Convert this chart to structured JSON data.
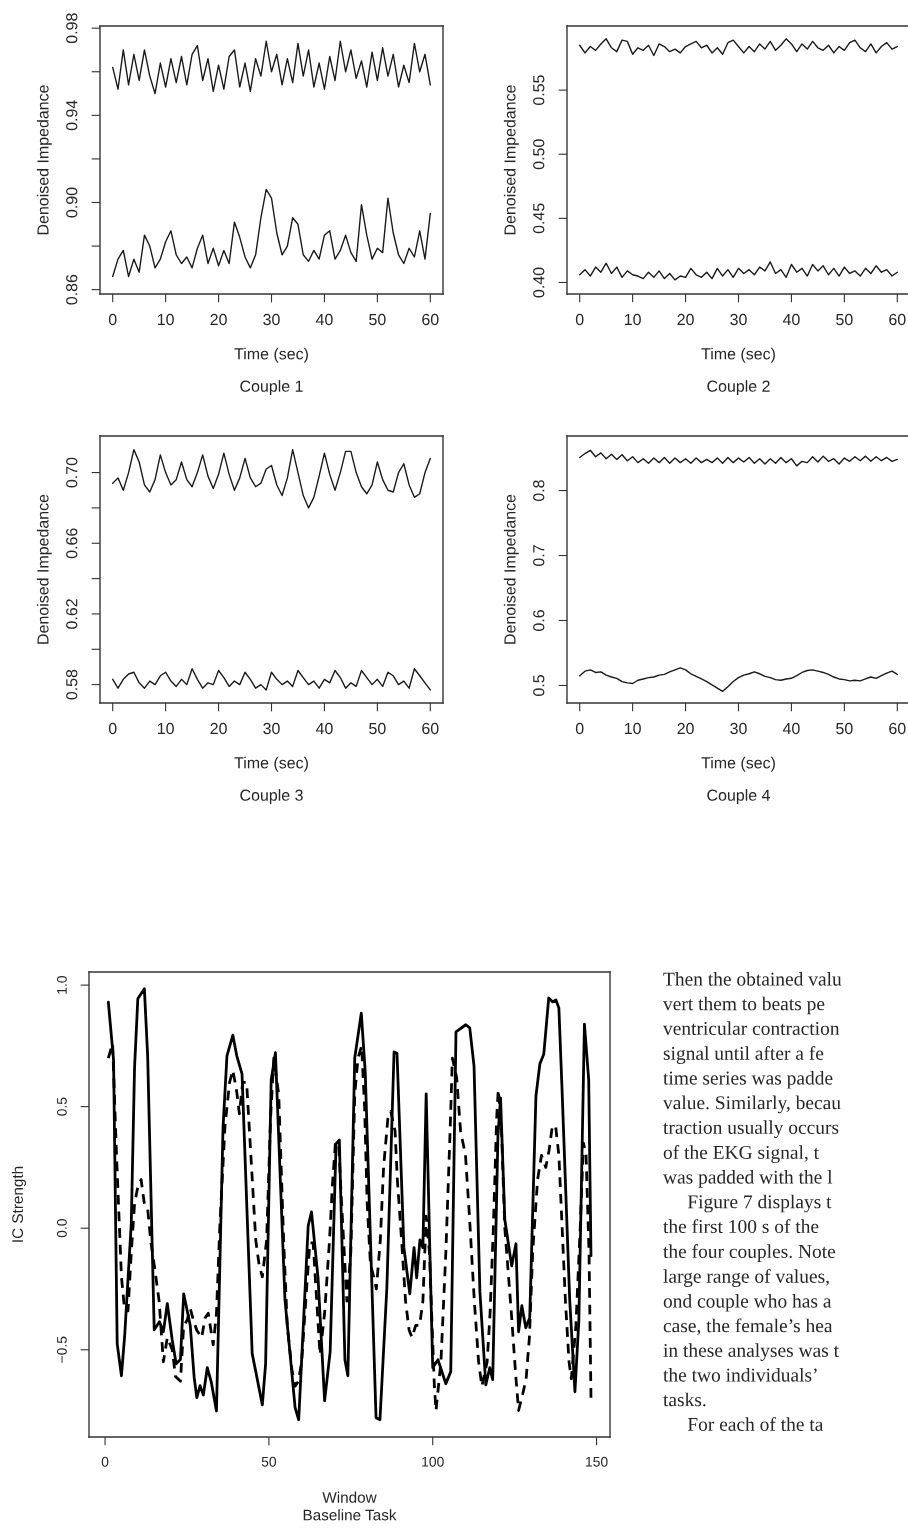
{
  "chart_data": [
    {
      "type": "line",
      "title": "Couple 1",
      "xlabel": "Time (sec)",
      "ylabel": "Denoised Impedance",
      "xlim": [
        -2.4,
        62.4
      ],
      "xticks": [
        0,
        10,
        20,
        30,
        40,
        50,
        60
      ],
      "ylim": [
        0.858,
        0.981
      ],
      "yticks": [
        {
          "value": 0.86,
          "label": "0.86"
        },
        {
          "value": 0.88,
          "label": null
        },
        {
          "value": 0.9,
          "label": "0.90"
        },
        {
          "value": 0.92,
          "label": null
        },
        {
          "value": 0.94,
          "label": "0.94"
        },
        {
          "value": 0.96,
          "label": null
        },
        {
          "value": 0.98,
          "label": "0.98"
        }
      ],
      "x": [
        0,
        1,
        2,
        3,
        4,
        5,
        6,
        7,
        8,
        9,
        10,
        11,
        12,
        13,
        14,
        15,
        16,
        17,
        18,
        19,
        20,
        21,
        22,
        23,
        24,
        25,
        26,
        27,
        28,
        29,
        30,
        31,
        32,
        33,
        34,
        35,
        36,
        37,
        38,
        39,
        40,
        41,
        42,
        43,
        44,
        45,
        46,
        47,
        48,
        49,
        50,
        51,
        52,
        53,
        54,
        55,
        56,
        57,
        58,
        59,
        60
      ],
      "series": [
        {
          "color": "#1a1a1a",
          "line_style": "solid",
          "values": [
            0.962,
            0.952,
            0.97,
            0.954,
            0.968,
            0.956,
            0.97,
            0.958,
            0.95,
            0.964,
            0.953,
            0.966,
            0.955,
            0.967,
            0.954,
            0.968,
            0.972,
            0.956,
            0.966,
            0.951,
            0.963,
            0.952,
            0.967,
            0.97,
            0.953,
            0.964,
            0.951,
            0.966,
            0.958,
            0.974,
            0.96,
            0.968,
            0.954,
            0.966,
            0.955,
            0.973,
            0.958,
            0.97,
            0.953,
            0.964,
            0.952,
            0.967,
            0.956,
            0.974,
            0.96,
            0.97,
            0.957,
            0.965,
            0.953,
            0.969,
            0.956,
            0.971,
            0.958,
            0.968,
            0.953,
            0.963,
            0.955,
            0.973,
            0.96,
            0.968,
            0.954
          ]
        },
        {
          "color": "#1a1a1a",
          "line_style": "solid",
          "values": [
            0.866,
            0.874,
            0.878,
            0.866,
            0.874,
            0.868,
            0.885,
            0.88,
            0.87,
            0.874,
            0.882,
            0.887,
            0.876,
            0.872,
            0.875,
            0.87,
            0.879,
            0.885,
            0.872,
            0.879,
            0.871,
            0.878,
            0.872,
            0.891,
            0.884,
            0.875,
            0.87,
            0.876,
            0.893,
            0.906,
            0.902,
            0.886,
            0.876,
            0.88,
            0.893,
            0.89,
            0.876,
            0.873,
            0.878,
            0.874,
            0.885,
            0.887,
            0.874,
            0.878,
            0.885,
            0.877,
            0.873,
            0.899,
            0.885,
            0.874,
            0.879,
            0.877,
            0.902,
            0.886,
            0.876,
            0.872,
            0.879,
            0.875,
            0.887,
            0.874,
            0.895
          ]
        }
      ]
    },
    {
      "type": "line",
      "title": "Couple 2",
      "xlabel": "Time (sec)",
      "ylabel": "Denoised Impedance",
      "xlim": [
        -2.4,
        62.4
      ],
      "xticks": [
        0,
        10,
        20,
        30,
        40,
        50,
        60
      ],
      "ylim": [
        0.391,
        0.6
      ],
      "yticks": [
        {
          "value": 0.4,
          "label": "0.40"
        },
        {
          "value": 0.45,
          "label": "0.45"
        },
        {
          "value": 0.5,
          "label": "0.50"
        },
        {
          "value": 0.55,
          "label": "0.55"
        }
      ],
      "x": [
        0,
        1,
        2,
        3,
        4,
        5,
        6,
        7,
        8,
        9,
        10,
        11,
        12,
        13,
        14,
        15,
        16,
        17,
        18,
        19,
        20,
        21,
        22,
        23,
        24,
        25,
        26,
        27,
        28,
        29,
        30,
        31,
        32,
        33,
        34,
        35,
        36,
        37,
        38,
        39,
        40,
        41,
        42,
        43,
        44,
        45,
        46,
        47,
        48,
        49,
        50,
        51,
        52,
        53,
        54,
        55,
        56,
        57,
        58,
        59,
        60
      ],
      "series": [
        {
          "color": "#1a1a1a",
          "line_style": "solid",
          "values": [
            0.585,
            0.579,
            0.584,
            0.581,
            0.586,
            0.59,
            0.583,
            0.58,
            0.589,
            0.588,
            0.578,
            0.583,
            0.581,
            0.585,
            0.577,
            0.586,
            0.584,
            0.58,
            0.582,
            0.579,
            0.584,
            0.586,
            0.588,
            0.583,
            0.585,
            0.579,
            0.583,
            0.578,
            0.587,
            0.589,
            0.584,
            0.579,
            0.584,
            0.58,
            0.586,
            0.582,
            0.588,
            0.581,
            0.585,
            0.59,
            0.586,
            0.58,
            0.586,
            0.582,
            0.588,
            0.583,
            0.581,
            0.585,
            0.579,
            0.584,
            0.581,
            0.587,
            0.589,
            0.583,
            0.58,
            0.586,
            0.579,
            0.584,
            0.587,
            0.582,
            0.584
          ]
        },
        {
          "color": "#1a1a1a",
          "line_style": "solid",
          "values": [
            0.406,
            0.41,
            0.405,
            0.412,
            0.408,
            0.415,
            0.407,
            0.412,
            0.404,
            0.409,
            0.406,
            0.405,
            0.403,
            0.408,
            0.404,
            0.409,
            0.403,
            0.407,
            0.402,
            0.405,
            0.404,
            0.411,
            0.406,
            0.404,
            0.408,
            0.403,
            0.411,
            0.405,
            0.41,
            0.404,
            0.411,
            0.407,
            0.41,
            0.406,
            0.412,
            0.409,
            0.416,
            0.407,
            0.41,
            0.404,
            0.414,
            0.408,
            0.411,
            0.405,
            0.414,
            0.409,
            0.413,
            0.406,
            0.411,
            0.405,
            0.412,
            0.407,
            0.409,
            0.405,
            0.411,
            0.407,
            0.413,
            0.408,
            0.41,
            0.405,
            0.408
          ]
        }
      ]
    },
    {
      "type": "line",
      "title": "Couple 3",
      "xlabel": "Time (sec)",
      "ylabel": "Denoised Impedance",
      "xlim": [
        -2.4,
        62.4
      ],
      "xticks": [
        0,
        10,
        20,
        30,
        40,
        50,
        60
      ],
      "ylim": [
        0.5696,
        0.7207
      ],
      "yticks": [
        {
          "value": 0.58,
          "label": "0.58"
        },
        {
          "value": 0.6,
          "label": null
        },
        {
          "value": 0.62,
          "label": "0.62"
        },
        {
          "value": 0.64,
          "label": null
        },
        {
          "value": 0.66,
          "label": "0.66"
        },
        {
          "value": 0.68,
          "label": null
        },
        {
          "value": 0.7,
          "label": "0.70"
        }
      ],
      "x": [
        0,
        1,
        2,
        3,
        4,
        5,
        6,
        7,
        8,
        9,
        10,
        11,
        12,
        13,
        14,
        15,
        16,
        17,
        18,
        19,
        20,
        21,
        22,
        23,
        24,
        25,
        26,
        27,
        28,
        29,
        30,
        31,
        32,
        33,
        34,
        35,
        36,
        37,
        38,
        39,
        40,
        41,
        42,
        43,
        44,
        45,
        46,
        47,
        48,
        49,
        50,
        51,
        52,
        53,
        54,
        55,
        56,
        57,
        58,
        59,
        60
      ],
      "series": [
        {
          "color": "#1a1a1a",
          "line_style": "solid",
          "values": [
            0.694,
            0.697,
            0.69,
            0.7,
            0.713,
            0.706,
            0.693,
            0.689,
            0.696,
            0.71,
            0.7,
            0.693,
            0.696,
            0.706,
            0.696,
            0.692,
            0.7,
            0.71,
            0.698,
            0.691,
            0.699,
            0.711,
            0.699,
            0.69,
            0.697,
            0.708,
            0.697,
            0.692,
            0.694,
            0.702,
            0.704,
            0.693,
            0.687,
            0.697,
            0.713,
            0.7,
            0.687,
            0.68,
            0.686,
            0.698,
            0.711,
            0.699,
            0.69,
            0.7,
            0.712,
            0.712,
            0.7,
            0.692,
            0.688,
            0.693,
            0.706,
            0.696,
            0.69,
            0.689,
            0.7,
            0.705,
            0.693,
            0.686,
            0.688,
            0.7,
            0.708
          ]
        },
        {
          "color": "#1a1a1a",
          "line_style": "solid",
          "values": [
            0.583,
            0.578,
            0.583,
            0.586,
            0.587,
            0.581,
            0.578,
            0.582,
            0.58,
            0.585,
            0.587,
            0.582,
            0.579,
            0.583,
            0.58,
            0.589,
            0.583,
            0.578,
            0.581,
            0.58,
            0.588,
            0.584,
            0.579,
            0.582,
            0.58,
            0.587,
            0.583,
            0.578,
            0.58,
            0.577,
            0.587,
            0.583,
            0.58,
            0.582,
            0.579,
            0.588,
            0.584,
            0.58,
            0.582,
            0.578,
            0.583,
            0.581,
            0.588,
            0.584,
            0.578,
            0.581,
            0.579,
            0.588,
            0.584,
            0.58,
            0.583,
            0.579,
            0.587,
            0.585,
            0.58,
            0.582,
            0.578,
            0.589,
            0.585,
            0.581,
            0.577
          ]
        }
      ]
    },
    {
      "type": "line",
      "title": "Couple 4",
      "xlabel": "Time (sec)",
      "ylabel": "Denoised Impedance",
      "xlim": [
        -2.4,
        62.4
      ],
      "xticks": [
        0,
        10,
        20,
        30,
        40,
        50,
        60
      ],
      "ylim": [
        0.473,
        0.884
      ],
      "yticks": [
        0.5,
        0.6,
        0.7,
        0.8
      ],
      "x": [
        0,
        1,
        2,
        3,
        4,
        5,
        6,
        7,
        8,
        9,
        10,
        11,
        12,
        13,
        14,
        15,
        16,
        17,
        18,
        19,
        20,
        21,
        22,
        23,
        24,
        25,
        26,
        27,
        28,
        29,
        30,
        31,
        32,
        33,
        34,
        35,
        36,
        37,
        38,
        39,
        40,
        41,
        42,
        43,
        44,
        45,
        46,
        47,
        48,
        49,
        50,
        51,
        52,
        53,
        54,
        55,
        56,
        57,
        58,
        59,
        60
      ],
      "series": [
        {
          "color": "#1a1a1a",
          "line_style": "solid",
          "values": [
            0.851,
            0.857,
            0.862,
            0.852,
            0.858,
            0.849,
            0.856,
            0.848,
            0.855,
            0.846,
            0.852,
            0.843,
            0.849,
            0.842,
            0.85,
            0.843,
            0.851,
            0.842,
            0.85,
            0.843,
            0.849,
            0.842,
            0.85,
            0.843,
            0.848,
            0.843,
            0.85,
            0.842,
            0.851,
            0.843,
            0.85,
            0.844,
            0.851,
            0.842,
            0.849,
            0.841,
            0.849,
            0.842,
            0.851,
            0.843,
            0.849,
            0.838,
            0.845,
            0.843,
            0.852,
            0.844,
            0.853,
            0.845,
            0.849,
            0.841,
            0.85,
            0.845,
            0.852,
            0.846,
            0.853,
            0.845,
            0.852,
            0.846,
            0.851,
            0.845,
            0.848
          ]
        },
        {
          "color": "#1a1a1a",
          "line_style": "solid",
          "values": [
            0.515,
            0.522,
            0.524,
            0.52,
            0.521,
            0.516,
            0.513,
            0.511,
            0.506,
            0.504,
            0.503,
            0.508,
            0.51,
            0.512,
            0.513,
            0.516,
            0.517,
            0.521,
            0.524,
            0.527,
            0.524,
            0.518,
            0.514,
            0.51,
            0.506,
            0.501,
            0.496,
            0.491,
            0.498,
            0.506,
            0.512,
            0.516,
            0.518,
            0.521,
            0.518,
            0.514,
            0.512,
            0.509,
            0.508,
            0.51,
            0.511,
            0.515,
            0.52,
            0.523,
            0.524,
            0.522,
            0.52,
            0.517,
            0.513,
            0.51,
            0.509,
            0.507,
            0.508,
            0.507,
            0.51,
            0.513,
            0.511,
            0.515,
            0.519,
            0.522,
            0.517
          ]
        }
      ]
    },
    {
      "type": "line",
      "title": "Baseline Task",
      "xlabel": "Window",
      "ylabel": "IC Strength",
      "xlim": [
        -4.9,
        154.1
      ],
      "xticks": [
        0,
        50,
        100,
        150
      ],
      "ylim": [
        -0.859,
        1.054
      ],
      "yticks": [
        {
          "value": -0.5,
          "label": "−0.5"
        },
        {
          "value": 0,
          "label": "0.0"
        },
        {
          "value": 0.5,
          "label": "0.5"
        },
        {
          "value": 1,
          "label": "1.0"
        }
      ],
      "annotations": [
        "Then the obtained valu\nvert them to beats pe\nventricular contraction\nsignal until after a fe\ntime series was padde\nvalue. Similarly, becau\ntraction usually occurs\nof the EKG signal, t\nwas padded with the l\n     Figure 7 displays t\nthe first 100 s of the\nthe four couples. Note\nlarge range of values,\nond couple who has a\ncase, the female’s hea\nin these analyses was t\nthe two individuals’\ntasks.\n     For each of the ta"
      ],
      "series": [
        {
          "color": "#000000",
          "line_style": "solid",
          "x": [
            1,
            2.6,
            3.7,
            5,
            6,
            8,
            9,
            10,
            12,
            13,
            15,
            16.6,
            17.8,
            19,
            20.5,
            21.7,
            23,
            24,
            26,
            27.2,
            28,
            29,
            30,
            31.2,
            32.4,
            34,
            36,
            37.2,
            39,
            40.2,
            41.8,
            44.9,
            46,
            48,
            49,
            50.7,
            52,
            54.9,
            58,
            59.1,
            62,
            63,
            65,
            67,
            68.7,
            70.5,
            71.5,
            73.2,
            74.1,
            76.2,
            78.2,
            79.4,
            82.7,
            83.9,
            86,
            88.2,
            89.1,
            91.2,
            93,
            94.3,
            95.1,
            96.1,
            97,
            98,
            99.1,
            100,
            101.6,
            102.8,
            104,
            105.5,
            107.1,
            110.1,
            111.3,
            112.6,
            114.4,
            116.2,
            117.4,
            118.3,
            119.9,
            120.7,
            122,
            124.1,
            125.4,
            126.2,
            127.2,
            128.4,
            129.6,
            131.5,
            132.7,
            133.9,
            135.4,
            136.6,
            137.6,
            138.5,
            139.4,
            141.8,
            143.4,
            144.6,
            146.3,
            147.6,
            148.3
          ],
          "values": [
            0.93,
            0.69,
            -0.475,
            -0.607,
            -0.44,
            0.02,
            0.66,
            0.944,
            0.985,
            0.71,
            -0.418,
            -0.385,
            -0.426,
            -0.31,
            -0.46,
            -0.558,
            -0.54,
            -0.27,
            -0.4,
            -0.615,
            -0.697,
            -0.648,
            -0.686,
            -0.574,
            -0.632,
            -0.752,
            0.413,
            0.709,
            0.794,
            0.709,
            0.635,
            -0.516,
            -0.59,
            -0.727,
            -0.558,
            0.61,
            0.722,
            -0.294,
            -0.738,
            -0.788,
            0.01,
            0.067,
            -0.204,
            -0.71,
            -0.508,
            0.347,
            0.363,
            -0.541,
            -0.607,
            0.7,
            0.885,
            0.643,
            -0.78,
            -0.788,
            -0.245,
            0.725,
            0.72,
            -0.08,
            -0.27,
            -0.08,
            -0.204,
            -0.048,
            -0.08,
            0.553,
            -0.08,
            -0.574,
            -0.541,
            -0.59,
            -0.64,
            -0.59,
            0.808,
            0.837,
            0.824,
            0.668,
            -0.262,
            -0.645,
            -0.574,
            -0.623,
            0.38,
            0.536,
            0.035,
            -0.155,
            -0.064,
            -0.426,
            -0.319,
            -0.41,
            -0.368,
            0.544,
            0.676,
            0.717,
            0.947,
            0.931,
            0.939,
            0.906,
            0.594,
            -0.294,
            -0.673,
            -0.377,
            0.84,
            0.61,
            -0.113
          ]
        },
        {
          "color": "#000000",
          "line_style": "dashed",
          "x": [
            1,
            2.3,
            3.5,
            5,
            6,
            7,
            8,
            9,
            10,
            11,
            12,
            13,
            14,
            15,
            16.5,
            17.8,
            19,
            20.5,
            21.5,
            23,
            24,
            25,
            26,
            27,
            28,
            29.5,
            30.5,
            31.5,
            33,
            34,
            35,
            36.6,
            38,
            39,
            40.2,
            41,
            42,
            43.2,
            44.5,
            46,
            47,
            48,
            49.3,
            50.5,
            51.5,
            53,
            54.5,
            55.6,
            57,
            58,
            59,
            60,
            61.5,
            62.5,
            63.5,
            64.6,
            65.6,
            67,
            68.5,
            69.4,
            70.3,
            71.3,
            72,
            72.8,
            73.8,
            75,
            76.2,
            77.2,
            78.3,
            79.2,
            80,
            81,
            82,
            82.8,
            84,
            85,
            86.3,
            87.2,
            88.5,
            89.2,
            90.5,
            91.7,
            92.8,
            93.7,
            94.8,
            96,
            97,
            98,
            99,
            99.8,
            100.5,
            101,
            102.5,
            104,
            105.3,
            106,
            107.3,
            108.5,
            110,
            111.2,
            112.7,
            114,
            115,
            116.6,
            117.5,
            118.5,
            119.5,
            120,
            121,
            122,
            124,
            125.3,
            126.2,
            127.5,
            128.5,
            129.5,
            130.5,
            132,
            133.2,
            134.5,
            135.5,
            136.5,
            137.5,
            138.5,
            139.5,
            140.5,
            141.6,
            142.3,
            143.7,
            145,
            146,
            146.8,
            147.7,
            148.3
          ],
          "values": [
            0.7,
            0.76,
            0.3,
            -0.2,
            -0.34,
            -0.34,
            -0.1,
            0.1,
            0.17,
            0.2,
            0.1,
            0.08,
            -0.06,
            -0.15,
            -0.3,
            -0.55,
            -0.45,
            -0.5,
            -0.61,
            -0.63,
            -0.4,
            -0.38,
            -0.33,
            -0.38,
            -0.42,
            -0.45,
            -0.37,
            -0.35,
            -0.48,
            -0.35,
            0.0,
            0.42,
            0.6,
            0.65,
            0.56,
            0.47,
            0.6,
            0.6,
            0.3,
            -0.05,
            -0.15,
            -0.2,
            -0.05,
            0.45,
            0.7,
            0.55,
            -0.05,
            -0.4,
            -0.58,
            -0.65,
            -0.63,
            -0.55,
            -0.25,
            -0.06,
            -0.06,
            -0.3,
            -0.52,
            -0.35,
            -0.05,
            0.18,
            0.35,
            0.35,
            0.15,
            -0.05,
            -0.3,
            -0.1,
            0.55,
            0.7,
            0.75,
            0.5,
            0.1,
            -0.15,
            -0.2,
            -0.25,
            -0.05,
            0.25,
            0.45,
            0.48,
            0.4,
            0.2,
            -0.05,
            -0.3,
            -0.42,
            -0.45,
            -0.4,
            -0.4,
            -0.3,
            0.05,
            -0.1,
            -0.4,
            -0.65,
            -0.75,
            -0.55,
            -0.1,
            0.4,
            0.7,
            0.62,
            0.4,
            0.3,
            0.05,
            -0.3,
            -0.55,
            -0.65,
            -0.55,
            -0.35,
            0.0,
            0.45,
            0.57,
            0.4,
            0.0,
            -0.35,
            -0.6,
            -0.75,
            -0.68,
            -0.62,
            -0.45,
            -0.1,
            0.2,
            0.3,
            0.25,
            0.32,
            0.42,
            0.42,
            0.3,
            0.0,
            -0.3,
            -0.55,
            -0.62,
            -0.4,
            0.0,
            0.35,
            0.3,
            -0.1,
            -0.7
          ]
        }
      ]
    }
  ]
}
